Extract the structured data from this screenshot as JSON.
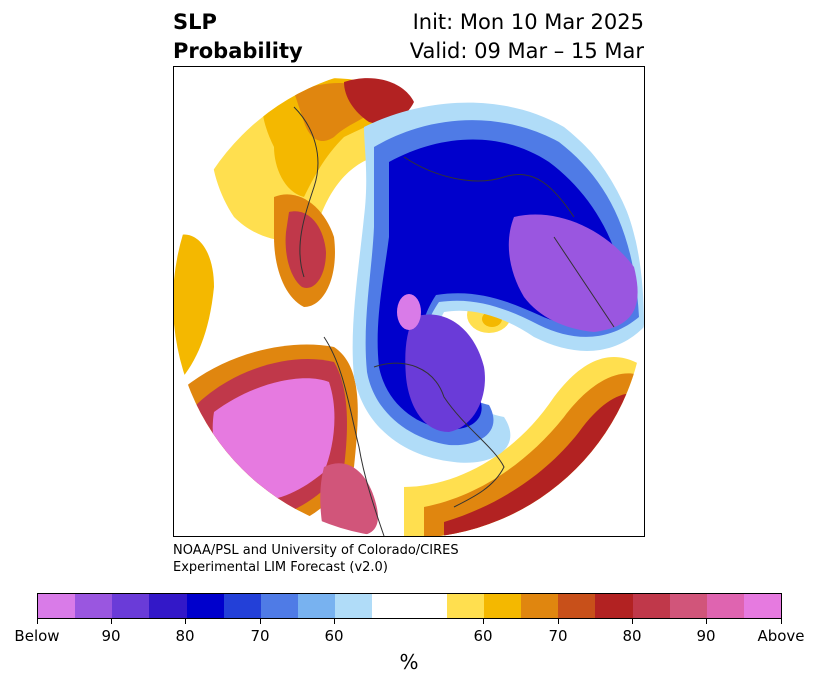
{
  "title": {
    "variable": "SLP",
    "product": "Probability",
    "init": "Init: Mon 10 Mar 2025",
    "valid": "Valid: 09 Mar – 15 Mar"
  },
  "credit": {
    "line1": "NOAA/PSL and University of Colorado/CIRES",
    "line2": "Experimental LIM Forecast (v2.0)"
  },
  "colorbar": {
    "unit": "%",
    "colors": [
      "#d97be8",
      "#9a56e0",
      "#6a3bd8",
      "#3318c8",
      "#0000cc",
      "#2340d8",
      "#4f7be6",
      "#78b2f0",
      "#b0dcf8",
      "#ffffff",
      "#ffffff",
      "#ffdf4f",
      "#f4b800",
      "#e0860f",
      "#c8501a",
      "#b22222",
      "#c0384a",
      "#d1557a",
      "#df64b0",
      "#e67ae0"
    ],
    "tick_labels": [
      "Below",
      "90",
      "80",
      "70",
      "60",
      "60",
      "70",
      "80",
      "90",
      "Above"
    ]
  }
}
